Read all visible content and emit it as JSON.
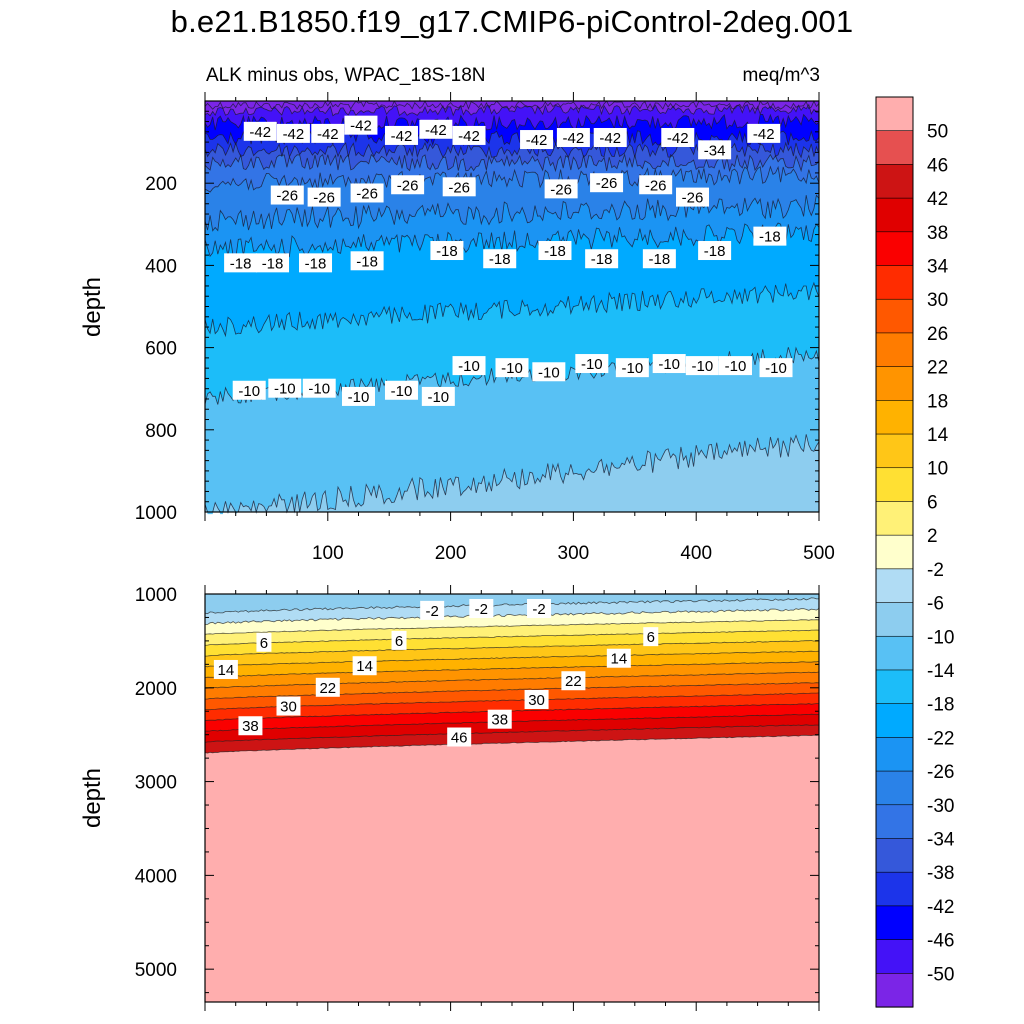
{
  "figure": {
    "title": "b.e21.B1850.f19_g17.CMIP6-piControl-2deg.001",
    "subtitle_left": "ALK minus obs, WPAC_18S-18N",
    "subtitle_right": "meq/m^3"
  },
  "chart_data": [
    {
      "type": "contour",
      "panel": "upper",
      "xlabel": "",
      "ylabel": "depth",
      "xlim": [
        0,
        500
      ],
      "ylim": [
        1000,
        0
      ],
      "x_ticks": [
        100,
        200,
        300,
        400,
        500
      ],
      "y_ticks": [
        200,
        400,
        600,
        800,
        1000
      ],
      "contour_labels": [
        {
          "x": 45,
          "depth": 75,
          "label": "-42"
        },
        {
          "x": 72,
          "depth": 80,
          "label": "-42"
        },
        {
          "x": 100,
          "depth": 80,
          "label": "-42"
        },
        {
          "x": 127,
          "depth": 60,
          "label": "-42"
        },
        {
          "x": 160,
          "depth": 85,
          "label": "-42"
        },
        {
          "x": 188,
          "depth": 70,
          "label": "-42"
        },
        {
          "x": 215,
          "depth": 85,
          "label": "-42"
        },
        {
          "x": 270,
          "depth": 95,
          "label": "-42"
        },
        {
          "x": 300,
          "depth": 90,
          "label": "-42"
        },
        {
          "x": 330,
          "depth": 90,
          "label": "-42"
        },
        {
          "x": 385,
          "depth": 90,
          "label": "-42"
        },
        {
          "x": 455,
          "depth": 80,
          "label": "-42"
        },
        {
          "x": 415,
          "depth": 120,
          "label": "-34"
        },
        {
          "x": 67,
          "depth": 230,
          "label": "-26"
        },
        {
          "x": 97,
          "depth": 235,
          "label": "-26"
        },
        {
          "x": 132,
          "depth": 225,
          "label": "-26"
        },
        {
          "x": 165,
          "depth": 205,
          "label": "-26"
        },
        {
          "x": 207,
          "depth": 210,
          "label": "-26"
        },
        {
          "x": 290,
          "depth": 215,
          "label": "-26"
        },
        {
          "x": 327,
          "depth": 200,
          "label": "-26"
        },
        {
          "x": 367,
          "depth": 205,
          "label": "-26"
        },
        {
          "x": 397,
          "depth": 235,
          "label": "-26"
        },
        {
          "x": 29,
          "depth": 395,
          "label": "-18"
        },
        {
          "x": 55,
          "depth": 395,
          "label": "-18"
        },
        {
          "x": 90,
          "depth": 395,
          "label": "-18"
        },
        {
          "x": 132,
          "depth": 390,
          "label": "-18"
        },
        {
          "x": 197,
          "depth": 365,
          "label": "-18"
        },
        {
          "x": 240,
          "depth": 385,
          "label": "-18"
        },
        {
          "x": 285,
          "depth": 365,
          "label": "-18"
        },
        {
          "x": 323,
          "depth": 385,
          "label": "-18"
        },
        {
          "x": 370,
          "depth": 385,
          "label": "-18"
        },
        {
          "x": 415,
          "depth": 365,
          "label": "-18"
        },
        {
          "x": 460,
          "depth": 330,
          "label": "-18"
        },
        {
          "x": 36,
          "depth": 705,
          "label": "-10"
        },
        {
          "x": 65,
          "depth": 700,
          "label": "-10"
        },
        {
          "x": 93,
          "depth": 700,
          "label": "-10"
        },
        {
          "x": 125,
          "depth": 720,
          "label": "-10"
        },
        {
          "x": 160,
          "depth": 705,
          "label": "-10"
        },
        {
          "x": 190,
          "depth": 720,
          "label": "-10"
        },
        {
          "x": 215,
          "depth": 645,
          "label": "-10"
        },
        {
          "x": 250,
          "depth": 650,
          "label": "-10"
        },
        {
          "x": 280,
          "depth": 660,
          "label": "-10"
        },
        {
          "x": 315,
          "depth": 640,
          "label": "-10"
        },
        {
          "x": 348,
          "depth": 650,
          "label": "-10"
        },
        {
          "x": 378,
          "depth": 640,
          "label": "-10"
        },
        {
          "x": 405,
          "depth": 645,
          "label": "-10"
        },
        {
          "x": 432,
          "depth": 645,
          "label": "-10"
        },
        {
          "x": 465,
          "depth": 650,
          "label": "-10"
        }
      ]
    },
    {
      "type": "contour",
      "panel": "lower",
      "xlabel": "",
      "ylabel": "depth",
      "xlim": [
        0,
        500
      ],
      "ylim": [
        5350,
        1000
      ],
      "x_ticks": [
        100,
        200,
        300,
        400,
        500
      ],
      "y_ticks": [
        1000,
        2000,
        3000,
        4000,
        5000
      ],
      "contour_labels": [
        {
          "x": 185,
          "depth": 1180,
          "label": "-2"
        },
        {
          "x": 225,
          "depth": 1160,
          "label": "-2"
        },
        {
          "x": 272,
          "depth": 1160,
          "label": "-2"
        },
        {
          "x": 48,
          "depth": 1520,
          "label": "6"
        },
        {
          "x": 158,
          "depth": 1500,
          "label": "6"
        },
        {
          "x": 363,
          "depth": 1460,
          "label": "6"
        },
        {
          "x": 17,
          "depth": 1810,
          "label": "14"
        },
        {
          "x": 130,
          "depth": 1770,
          "label": "14"
        },
        {
          "x": 337,
          "depth": 1690,
          "label": "14"
        },
        {
          "x": 100,
          "depth": 2000,
          "label": "22"
        },
        {
          "x": 300,
          "depth": 1930,
          "label": "22"
        },
        {
          "x": 68,
          "depth": 2200,
          "label": "30"
        },
        {
          "x": 270,
          "depth": 2130,
          "label": "30"
        },
        {
          "x": 37,
          "depth": 2410,
          "label": "38"
        },
        {
          "x": 240,
          "depth": 2340,
          "label": "38"
        },
        {
          "x": 207,
          "depth": 2530,
          "label": "46"
        }
      ]
    }
  ],
  "colorbar": {
    "labels": [
      "50",
      "46",
      "42",
      "38",
      "34",
      "30",
      "26",
      "22",
      "18",
      "14",
      "10",
      "6",
      "2",
      "-2",
      "-6",
      "-10",
      "-14",
      "-18",
      "-22",
      "-26",
      "-30",
      "-34",
      "-38",
      "-42",
      "-46",
      "-50"
    ],
    "colors": [
      "#ffaeae",
      "#e65050",
      "#cd1414",
      "#e00000",
      "#fa0000",
      "#ff2c00",
      "#ff5800",
      "#ff7c00",
      "#ff9400",
      "#ffb200",
      "#ffc617",
      "#ffe033",
      "#fff177",
      "#ffffcc",
      "#b0dcf4",
      "#8dcdef",
      "#58c1f4",
      "#1cbdf9",
      "#00aaff",
      "#1b94f3",
      "#2a82e8",
      "#3374e6",
      "#3558da",
      "#1c34ea",
      "#0000ff",
      "#4412f7",
      "#7b25e7"
    ]
  }
}
